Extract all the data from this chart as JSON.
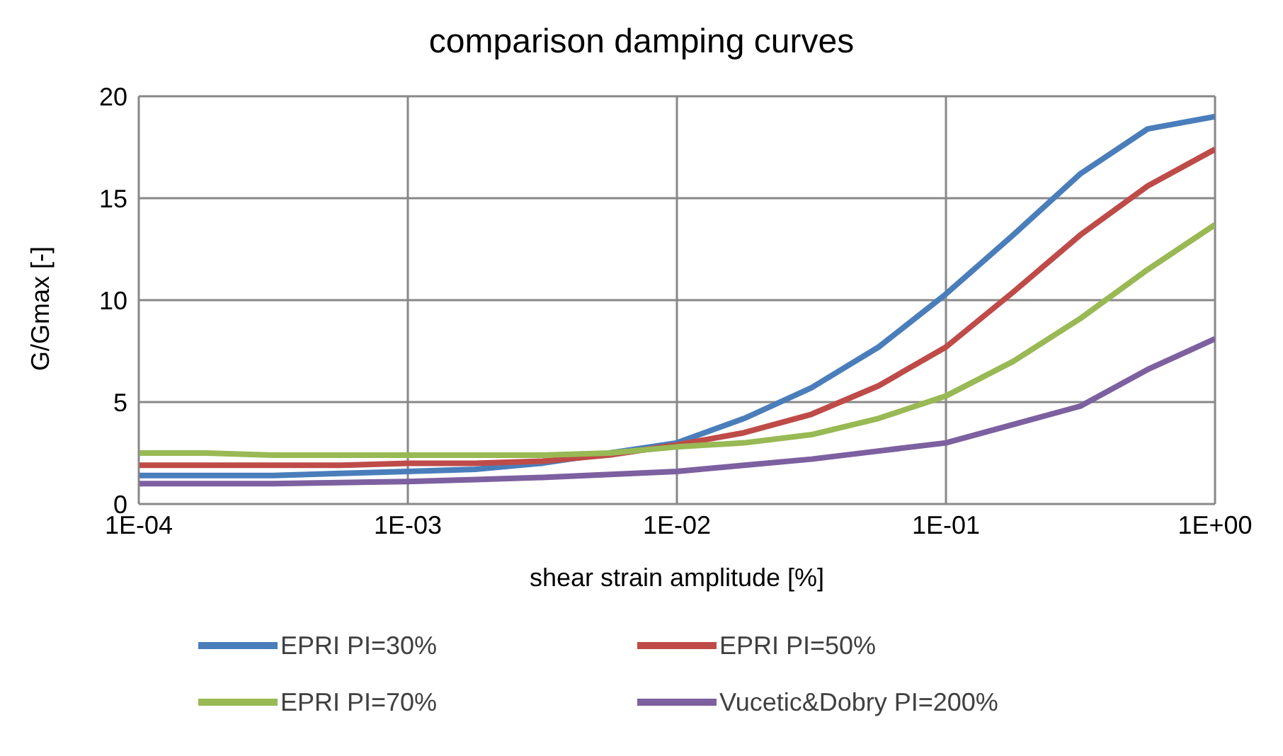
{
  "chart_data": {
    "type": "line",
    "title": "comparison damping curves",
    "xlabel": "shear strain amplitude [%]",
    "ylabel": "G/Gmax [-]",
    "x": [
      0.0001,
      0.000178,
      0.000316,
      0.000562,
      0.001,
      0.00178,
      0.00316,
      0.00562,
      0.01,
      0.0178,
      0.0316,
      0.0562,
      0.1,
      0.178,
      0.316,
      0.562,
      1
    ],
    "series": [
      {
        "name": "EPRI PI=30%",
        "color": "#4a7ebb",
        "values": [
          1.4,
          1.4,
          1.4,
          1.5,
          1.6,
          1.7,
          2.0,
          2.5,
          3.0,
          4.2,
          5.7,
          7.7,
          10.3,
          13.2,
          16.2,
          18.4,
          19.0
        ]
      },
      {
        "name": "EPRI PI=50%",
        "color": "#be4b48",
        "values": [
          1.9,
          1.9,
          1.9,
          1.9,
          2.0,
          2.0,
          2.1,
          2.4,
          2.9,
          3.5,
          4.4,
          5.8,
          7.7,
          10.4,
          13.2,
          15.6,
          17.4
        ]
      },
      {
        "name": "EPRI PI=70%",
        "color": "#98b954",
        "values": [
          2.5,
          2.5,
          2.4,
          2.4,
          2.4,
          2.4,
          2.4,
          2.5,
          2.8,
          3.0,
          3.4,
          4.2,
          5.3,
          7.0,
          9.1,
          11.5,
          13.7
        ]
      },
      {
        "name": "Vucetic&Dobry PI=200%",
        "color": "#7d60a0",
        "values": [
          1.0,
          1.0,
          1.0,
          1.05,
          1.1,
          1.2,
          1.3,
          1.45,
          1.6,
          1.9,
          2.2,
          2.6,
          3.0,
          3.9,
          4.8,
          6.6,
          8.1
        ]
      }
    ],
    "log": "x",
    "xlim": [
      0.0001,
      1
    ],
    "xticks": [
      {
        "value": 0.0001,
        "label": "1E-04"
      },
      {
        "value": 0.001,
        "label": "1E-03"
      },
      {
        "value": 0.01,
        "label": "1E-02"
      },
      {
        "value": 0.1,
        "label": "1E-01"
      },
      {
        "value": 1,
        "label": "1E+00"
      }
    ],
    "ylim": [
      0,
      20
    ],
    "yticks": [
      0,
      5,
      10,
      15,
      20
    ],
    "grid": true,
    "legend": "bottom",
    "marker": "none",
    "line_style": "solid"
  }
}
